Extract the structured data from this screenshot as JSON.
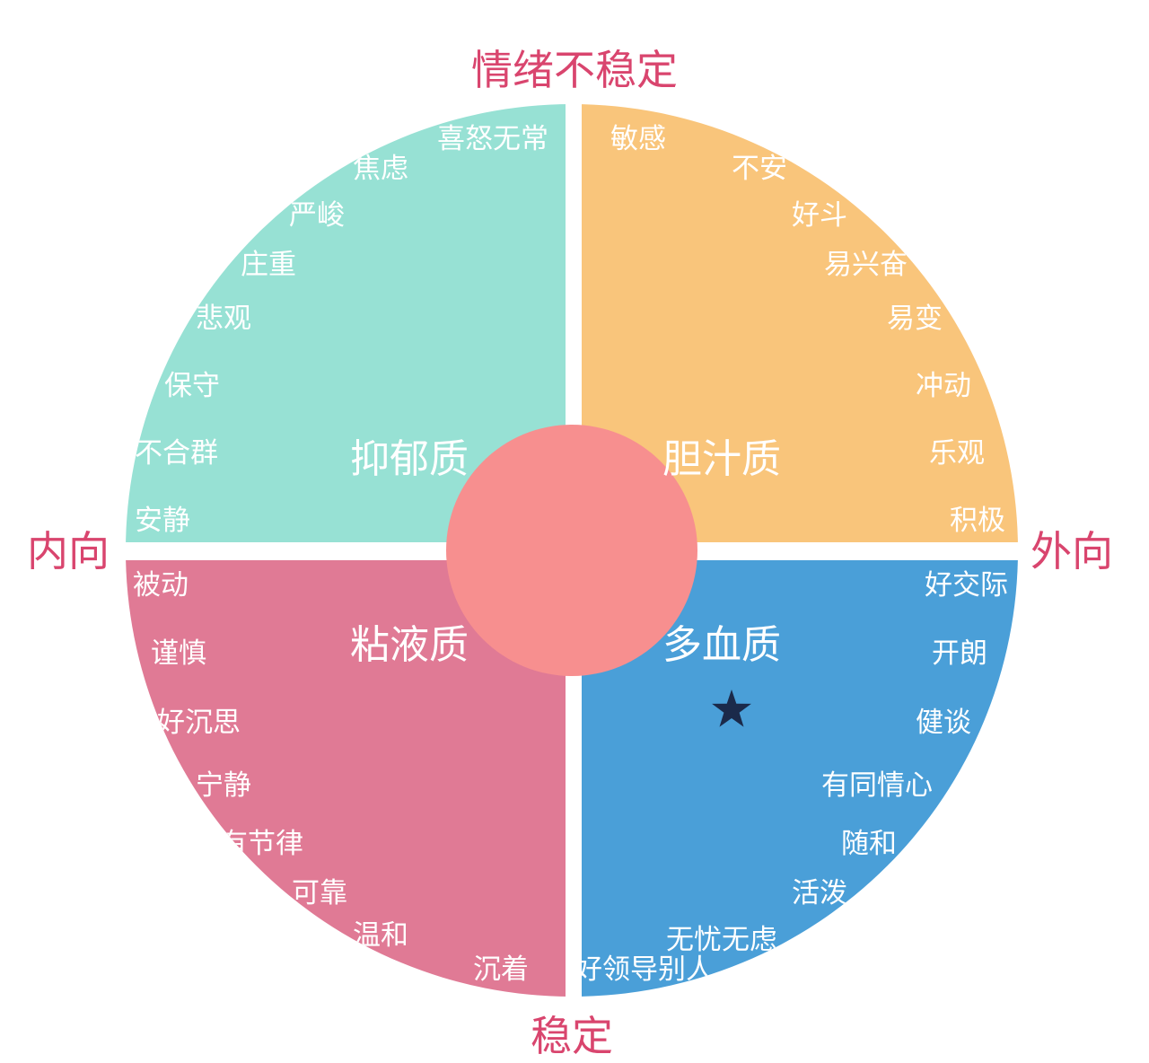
{
  "axes": {
    "top": "情绪不稳定",
    "bottom": "稳定",
    "left": "内向",
    "right": "外向"
  },
  "colors": {
    "melancholic": "#97E1D4",
    "choleric": "#F9C57B",
    "phlegmatic": "#E07A95",
    "sanguine": "#4A9FD8",
    "center": "#F78F8F",
    "axis_label": "#D9456E",
    "star": "#1B2A4A"
  },
  "quadrants": [
    {
      "name": "抑郁质",
      "traits": [
        "喜怒无常",
        "焦虑",
        "严峻",
        "庄重",
        "悲观",
        "保守",
        "不合群",
        "安静"
      ]
    },
    {
      "name": "胆汁质",
      "traits": [
        "敏感",
        "不安",
        "好斗",
        "易兴奋",
        "易变",
        "冲动",
        "乐观",
        "积极"
      ]
    },
    {
      "name": "粘液质",
      "traits": [
        "被动",
        "谨慎",
        "好沉思",
        "宁静",
        "有节律",
        "可靠",
        "温和",
        "沉着"
      ]
    },
    {
      "name": "多血质",
      "traits": [
        "好交际",
        "开朗",
        "健谈",
        "有同情心",
        "随和",
        "活泼",
        "无忧无虑",
        "好领导别人"
      ]
    }
  ],
  "marker": {
    "icon": "star-icon",
    "quadrant": "多血质"
  }
}
